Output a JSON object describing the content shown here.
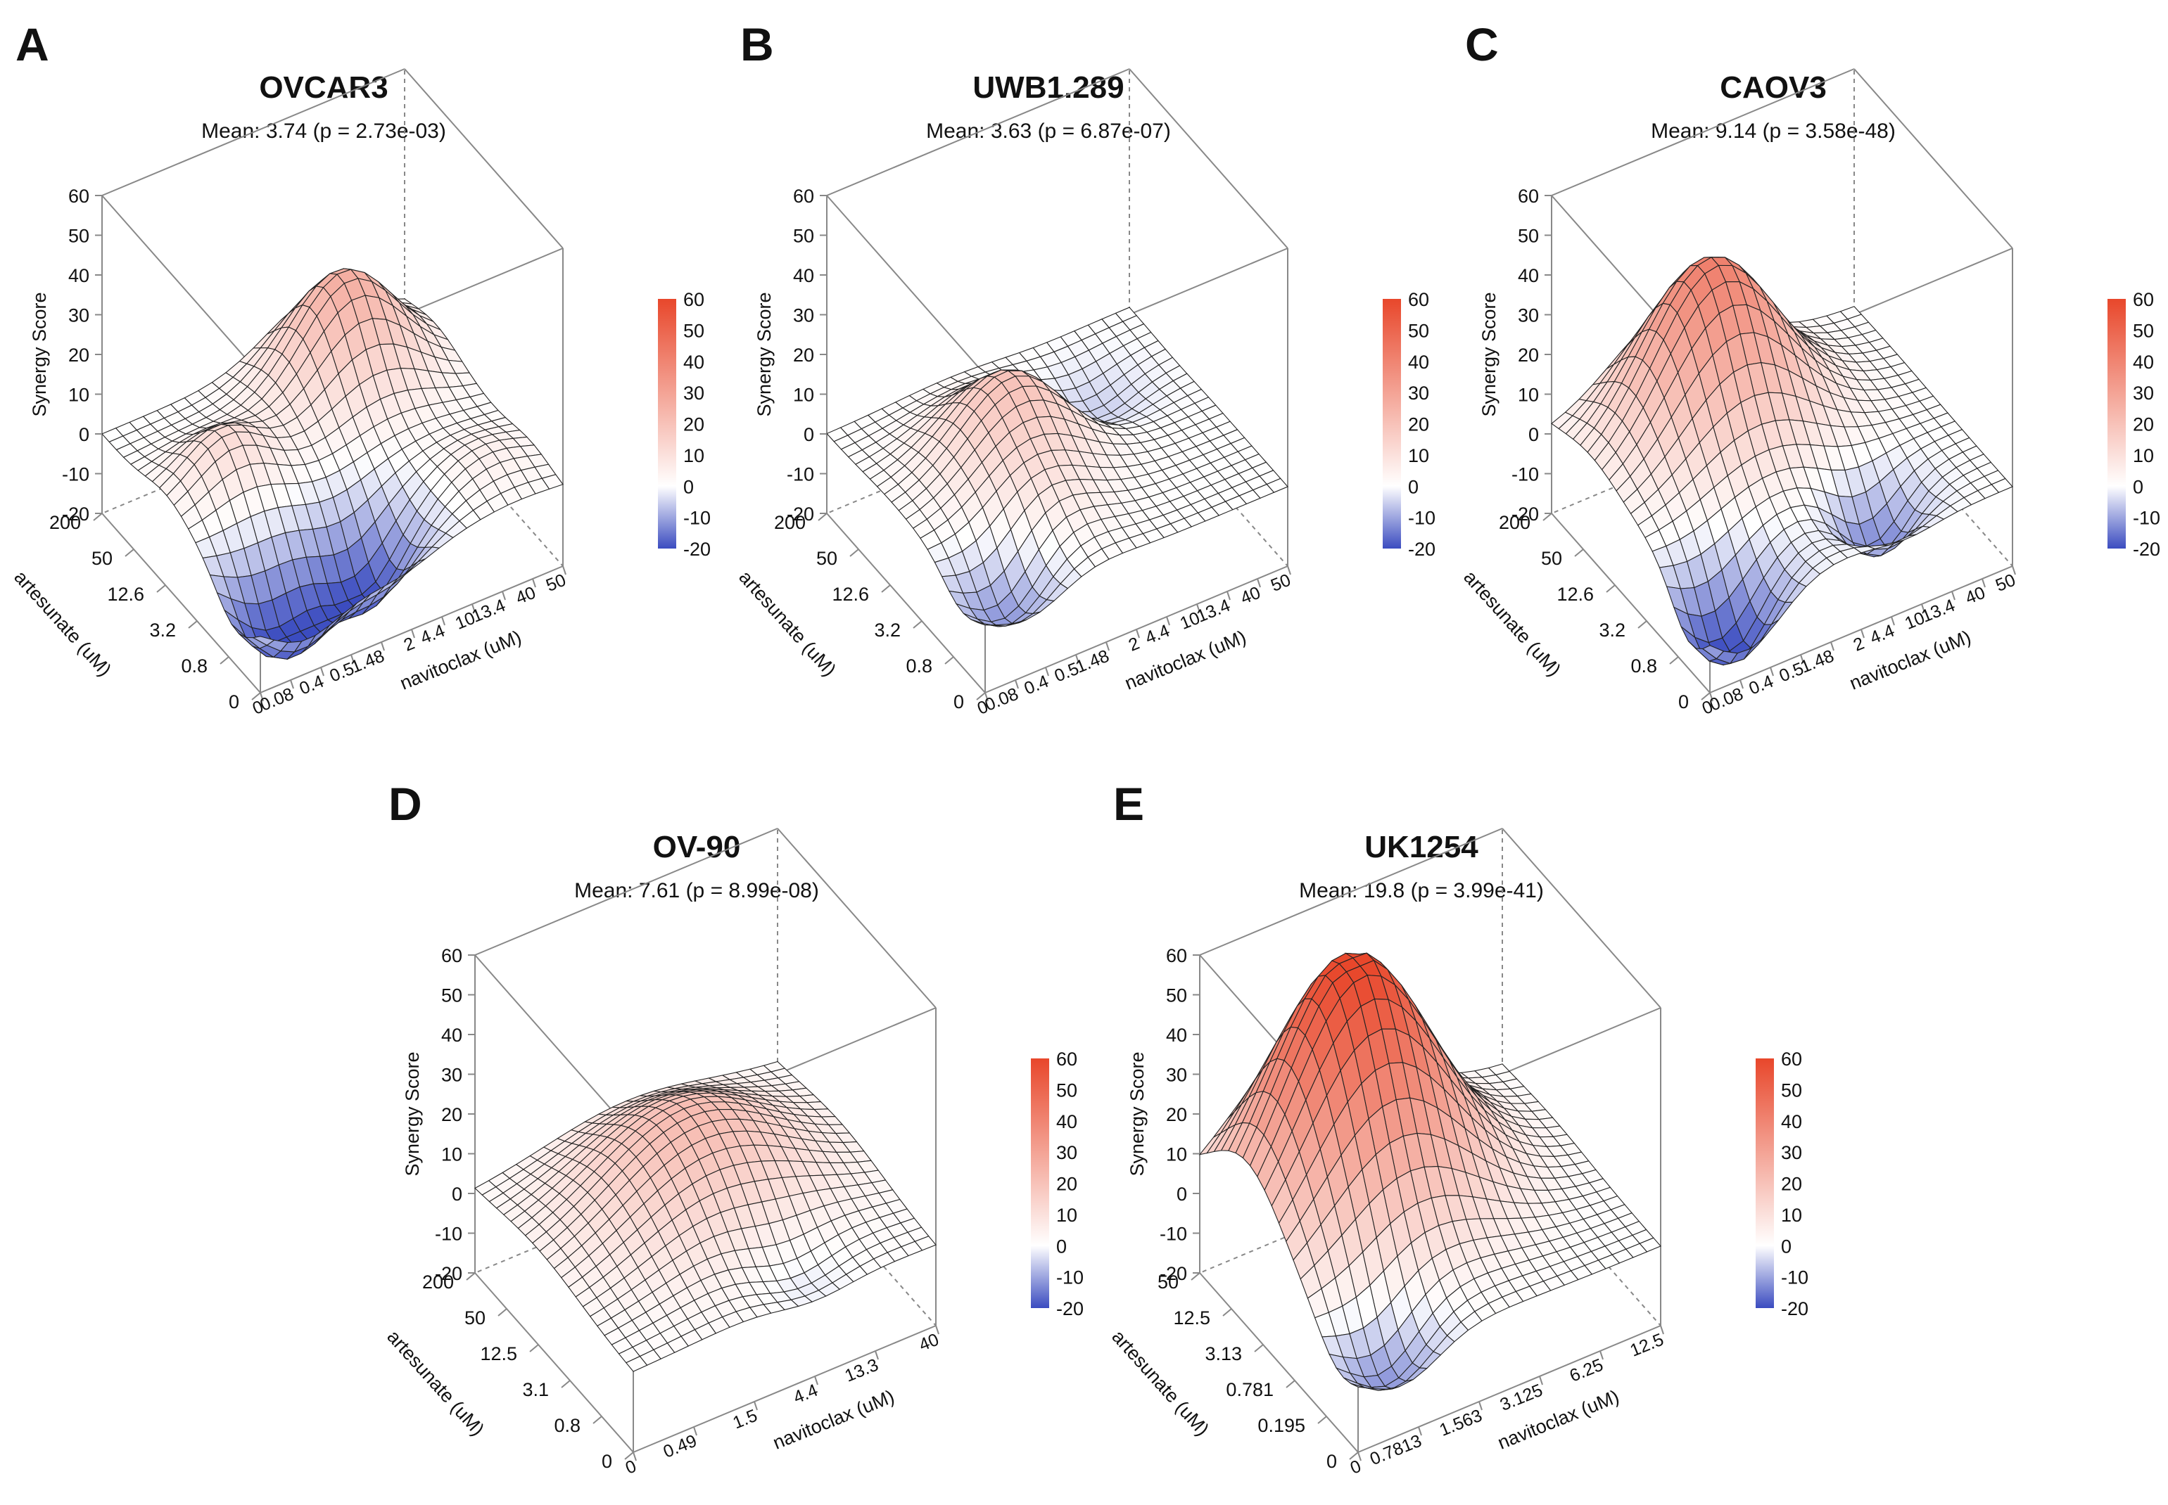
{
  "figure": {
    "colorbar": {
      "ticks": [
        "60",
        "50",
        "40",
        "30",
        "20",
        "10",
        "0",
        "-10",
        "-20"
      ],
      "low_color": "#3b4cc0",
      "mid_color": "#ffffff",
      "high_color": "#e8472b"
    },
    "z_label": "Synergy Score",
    "z_ticks": [
      "60",
      "50",
      "40",
      "30",
      "20",
      "10",
      "0",
      "-10",
      "-20"
    ],
    "y_label": "artesunate (uM)",
    "x_label": "navitoclax (uM)"
  },
  "chart_data": [
    {
      "type": "surface",
      "letter": "A",
      "title": "OVCAR3",
      "subtitle": "Mean: 3.74 (p = 2.73e-03)",
      "xlabel": "navitoclax (uM)",
      "ylabel": "artesunate (uM)",
      "zlabel": "Synergy Score",
      "zlim": [
        -20,
        60
      ],
      "x_ticks": [
        "0",
        "0.08",
        "0.4",
        "0.5",
        "1.48",
        "2",
        "4.4",
        "10",
        "13.4",
        "40",
        "50"
      ],
      "y_ticks": [
        "0",
        "0.8",
        "3.2",
        "12.6",
        "50",
        "200"
      ],
      "peaks": [
        {
          "x": 0.7,
          "y": 0.8,
          "height": 27,
          "spread": 0.16
        },
        {
          "x": 0.2,
          "y": 0.6,
          "height": 12,
          "spread": 0.12
        },
        {
          "x": 0.15,
          "y": 0.15,
          "height": -22,
          "spread": 0.13
        },
        {
          "x": 0.45,
          "y": 0.2,
          "height": -20,
          "spread": 0.12
        },
        {
          "x": 0.85,
          "y": 0.2,
          "height": 5,
          "spread": 0.12
        }
      ]
    },
    {
      "type": "surface",
      "letter": "B",
      "title": "UWB1.289",
      "subtitle": "Mean: 3.63 (p = 6.87e-07)",
      "xlabel": "navitoclax (uM)",
      "ylabel": "artesunate (uM)",
      "zlabel": "Synergy Score",
      "zlim": [
        -20,
        60
      ],
      "x_ticks": [
        "0",
        "0.08",
        "0.4",
        "0.5",
        "1.48",
        "2",
        "4.4",
        "10",
        "13.4",
        "40",
        "50"
      ],
      "y_ticks": [
        "0",
        "0.8",
        "3.2",
        "12.6",
        "50",
        "200"
      ],
      "peaks": [
        {
          "x": 0.4,
          "y": 0.6,
          "height": 20,
          "spread": 0.17
        },
        {
          "x": 0.3,
          "y": 0.25,
          "height": 8,
          "spread": 0.14
        },
        {
          "x": 0.15,
          "y": 0.15,
          "height": -15,
          "spread": 0.12
        },
        {
          "x": 0.7,
          "y": 0.7,
          "height": -8,
          "spread": 0.12
        }
      ]
    },
    {
      "type": "surface",
      "letter": "C",
      "title": "CAOV3",
      "subtitle": "Mean: 9.14 (p = 3.58e-48)",
      "xlabel": "navitoclax (uM)",
      "ylabel": "artesunate (uM)",
      "zlabel": "Synergy Score",
      "zlim": [
        -20,
        60
      ],
      "x_ticks": [
        "0",
        "0.08",
        "0.4",
        "0.5",
        "1.48",
        "2",
        "4.4",
        "10",
        "13.4",
        "40",
        "50"
      ],
      "y_ticks": [
        "0",
        "0.8",
        "3.2",
        "12.6",
        "50",
        "200"
      ],
      "peaks": [
        {
          "x": 0.4,
          "y": 0.75,
          "height": 42,
          "spread": 0.2
        },
        {
          "x": 0.12,
          "y": 0.12,
          "height": -22,
          "spread": 0.12
        },
        {
          "x": 0.65,
          "y": 0.2,
          "height": -15,
          "spread": 0.1
        }
      ]
    },
    {
      "type": "surface",
      "letter": "D",
      "title": "OV-90",
      "subtitle": "Mean: 7.61 (p = 8.99e-08)",
      "xlabel": "navitoclax (uM)",
      "ylabel": "artesunate (uM)",
      "zlabel": "Synergy Score",
      "zlim": [
        -20,
        60
      ],
      "x_ticks": [
        "0",
        "0.49",
        "1.5",
        "4.4",
        "13.3",
        "40"
      ],
      "y_ticks": [
        "0",
        "0.8",
        "3.1",
        "12.5",
        "50",
        "200"
      ],
      "peaks": [
        {
          "x": 0.5,
          "y": 0.6,
          "height": 22,
          "spread": 0.27
        },
        {
          "x": 0.6,
          "y": 0.15,
          "height": -6,
          "spread": 0.12
        }
      ]
    },
    {
      "type": "surface",
      "letter": "E",
      "title": "UK1254",
      "subtitle": "Mean: 19.8 (p = 3.99e-41)",
      "xlabel": "navitoclax (uM)",
      "ylabel": "artesunate (uM)",
      "zlabel": "Synergy Score",
      "zlim": [
        -20,
        60
      ],
      "x_ticks": [
        "0",
        "0.7813",
        "1.563",
        "3.125",
        "6.25",
        "12.5"
      ],
      "y_ticks": [
        "0",
        "0.195",
        "0.781",
        "3.13",
        "12.5",
        "50"
      ],
      "peaks": [
        {
          "x": 0.35,
          "y": 0.7,
          "height": 62,
          "spread": 0.24
        },
        {
          "x": 0.15,
          "y": 0.12,
          "height": -14,
          "spread": 0.12
        }
      ]
    }
  ]
}
